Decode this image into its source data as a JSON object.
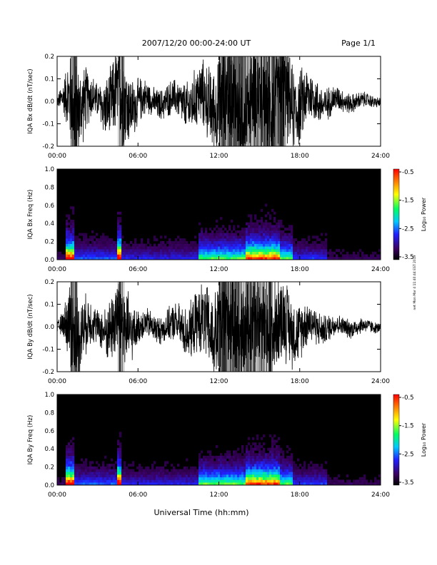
{
  "header": {
    "title": "2007/12/20  00:00-24:00 UT",
    "page": "Page 1/1"
  },
  "side_note": "net Mon Mar 4 11:40:44 EST 2019",
  "x_axis": {
    "label": "Universal Time (hh:mm)",
    "ticks": [
      "00:00",
      "06:00",
      "12:00",
      "18:00",
      "24:00"
    ],
    "range_hours": [
      0,
      24
    ]
  },
  "colorbar": {
    "label": "Log₁₀ Power",
    "ticks": [
      "-0.5",
      "-1.5",
      "-2.5",
      "-3.5"
    ],
    "range": [
      -3.5,
      -0.5
    ],
    "colormap": [
      "#000000",
      "#3a0060",
      "#2020ff",
      "#00c8ff",
      "#00ff60",
      "#ffff00",
      "#ff8000",
      "#ff0000"
    ]
  },
  "chart_data": [
    {
      "type": "line",
      "panel": "bx-timeseries",
      "ylabel": "IQA Bx dB/dt (nT/sec)",
      "ylim": [
        -0.2,
        0.2
      ],
      "yticks": [
        "0.2",
        "0.1",
        "0.0",
        "-0.1",
        "-0.2"
      ],
      "x_hours": [
        0,
        0.5,
        1.0,
        1.5,
        2.0,
        2.5,
        3.0,
        3.5,
        4.0,
        4.5,
        5.0,
        5.5,
        6.0,
        7.0,
        8.0,
        9.0,
        10.0,
        11.0,
        12.0,
        13.0,
        14.0,
        15.0,
        16.0,
        17.0,
        18.0,
        19.0,
        20.0,
        21.0,
        22.0,
        23.0,
        24.0
      ],
      "amplitude": [
        0.02,
        0.08,
        0.2,
        0.2,
        0.15,
        0.1,
        0.07,
        0.12,
        0.15,
        0.2,
        0.2,
        0.13,
        0.1,
        0.06,
        0.07,
        0.08,
        0.12,
        0.15,
        0.2,
        0.2,
        0.2,
        0.2,
        0.2,
        0.2,
        0.16,
        0.1,
        0.07,
        0.05,
        0.04,
        0.03,
        0.02
      ]
    },
    {
      "type": "heatmap",
      "panel": "bx-spectrogram",
      "ylabel": "IQA Bx Freq (Hz)",
      "ylim": [
        0.0,
        1.0
      ],
      "yticks": [
        "1.0",
        "0.8",
        "0.6",
        "0.4",
        "0.2",
        "0.0"
      ],
      "zlim": [
        -3.5,
        -0.5
      ]
    },
    {
      "type": "line",
      "panel": "by-timeseries",
      "ylabel": "IQA By dB/dt (nT/sec)",
      "ylim": [
        -0.2,
        0.2
      ],
      "yticks": [
        "0.2",
        "0.1",
        "0.0",
        "-0.1",
        "-0.2"
      ],
      "x_hours": [
        0,
        0.5,
        1.0,
        1.5,
        2.0,
        2.5,
        3.0,
        3.5,
        4.0,
        4.5,
        5.0,
        5.5,
        6.0,
        7.0,
        8.0,
        9.0,
        10.0,
        11.0,
        12.0,
        13.0,
        14.0,
        15.0,
        16.0,
        17.0,
        18.0,
        19.0,
        20.0,
        21.0,
        22.0,
        23.0,
        24.0
      ],
      "amplitude": [
        0.02,
        0.06,
        0.2,
        0.2,
        0.13,
        0.1,
        0.07,
        0.1,
        0.14,
        0.2,
        0.2,
        0.12,
        0.07,
        0.06,
        0.06,
        0.09,
        0.12,
        0.16,
        0.2,
        0.2,
        0.2,
        0.2,
        0.2,
        0.17,
        0.12,
        0.08,
        0.06,
        0.04,
        0.04,
        0.03,
        0.02
      ]
    },
    {
      "type": "heatmap",
      "panel": "by-spectrogram",
      "ylabel": "IQA By Freq (Hz)",
      "ylim": [
        0.0,
        1.0
      ],
      "yticks": [
        "1.0",
        "0.8",
        "0.6",
        "0.4",
        "0.2",
        "0.0"
      ],
      "zlim": [
        -3.5,
        -0.5
      ]
    }
  ]
}
